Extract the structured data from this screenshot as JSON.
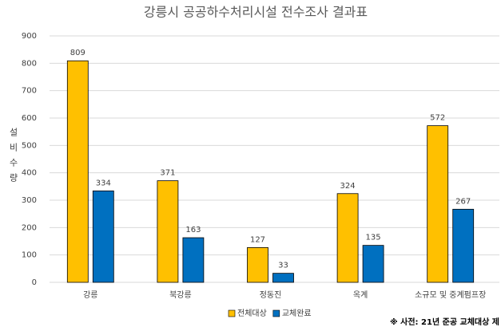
{
  "chart_data": {
    "type": "bar",
    "title": "강릉시 공공하수처리시설 전수조사 결과표",
    "y_label": "설비수량",
    "categories": [
      "강릉",
      "북강릉",
      "정동진",
      "옥계",
      "소규모 및 중계펌프장"
    ],
    "series": [
      {
        "name": "전체대상",
        "color": "#ffc000",
        "values": [
          809,
          371,
          127,
          324,
          572
        ]
      },
      {
        "name": "교체완료",
        "color": "#0070c0",
        "values": [
          334,
          163,
          33,
          135,
          267
        ]
      }
    ],
    "ylim": [
      0,
      900
    ],
    "yticks": [
      0,
      100,
      200,
      300,
      400,
      500,
      600,
      700,
      800,
      900
    ],
    "grid": true,
    "legend": "bottom",
    "note": "※ 사전: 21년 준공 교체대상 제"
  }
}
